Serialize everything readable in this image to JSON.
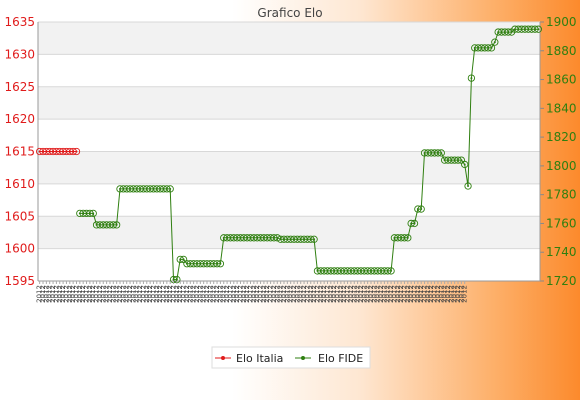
{
  "chart_data": {
    "type": "line",
    "title": "Grafico Elo",
    "left_axis": {
      "ylim": [
        1595,
        1635
      ],
      "ticks": [
        1595,
        1600,
        1605,
        1610,
        1615,
        1620,
        1625,
        1630,
        1635
      ],
      "color": "#e01b1b"
    },
    "right_axis": {
      "ylim": [
        1720,
        1900
      ],
      "ticks": [
        1720,
        1740,
        1760,
        1780,
        1800,
        1820,
        1840,
        1860,
        1880,
        1900
      ],
      "color": "#2f7f10"
    },
    "grid": true,
    "legend_position": "bottom",
    "x_tick_labels": [
      "2012",
      "2012",
      "2012",
      "2012",
      "2012",
      "2012",
      "2012",
      "2012",
      "2012",
      "2012",
      "2012",
      "2012",
      "2012",
      "2012",
      "2012",
      "2012",
      "2012",
      "2012",
      "2012",
      "2012",
      "2012",
      "2012",
      "2012",
      "2012",
      "2012",
      "2012",
      "2012",
      "2012",
      "2012",
      "2012",
      "2012",
      "2012",
      "2012",
      "2012",
      "2012",
      "2012",
      "2012",
      "2012",
      "2012",
      "2012",
      "2012",
      "2012",
      "2012",
      "2012",
      "2012",
      "2012",
      "2012",
      "2012",
      "2012",
      "2012",
      "2012",
      "2012",
      "2012",
      "2012",
      "2012",
      "2012",
      "2012",
      "2012",
      "2012",
      "2012",
      "2012",
      "2012",
      "2012",
      "2012",
      "2012",
      "2012",
      "2012",
      "2012",
      "2012",
      "2012",
      "2012",
      "2012",
      "2012",
      "2012",
      "2012",
      "2012",
      "2012",
      "2012",
      "2012",
      "2012",
      "2012",
      "2012",
      "2012",
      "2012",
      "2012",
      "2012",
      "2012",
      "2012",
      "2012",
      "2012",
      "2012",
      "2012",
      "2012",
      "2012",
      "2012",
      "2012",
      "2012",
      "2012",
      "2012",
      "2012",
      "2012",
      "2012",
      "2012",
      "2012",
      "2012",
      "2012",
      "2012",
      "2012",
      "2012",
      "2012",
      "2012",
      "2012",
      "2012",
      "2012",
      "2012",
      "2012",
      "2012",
      "2012",
      "2012",
      "2012",
      "2012",
      "2012",
      "2012",
      "2012",
      "2012",
      "2012",
      "2012",
      "2012"
    ],
    "series": [
      {
        "name": "Elo Italia",
        "axis": "left",
        "color": "#e01b1b",
        "values": [
          1615,
          1615,
          1615,
          1615,
          1615,
          1615,
          1615,
          1615,
          1615,
          1615,
          1615,
          1615
        ]
      },
      {
        "name": "Elo FIDE",
        "axis": "right",
        "color": "#2f7f10",
        "values": [
          null,
          null,
          null,
          null,
          null,
          null,
          null,
          null,
          null,
          null,
          null,
          null,
          1767,
          1767,
          1767,
          1767,
          1767,
          1759,
          1759,
          1759,
          1759,
          1759,
          1759,
          1759,
          1784,
          1784,
          1784,
          1784,
          1784,
          1784,
          1784,
          1784,
          1784,
          1784,
          1784,
          1784,
          1784,
          1784,
          1784,
          1784,
          1721,
          1721,
          1735,
          1735,
          1732,
          1732,
          1732,
          1732,
          1732,
          1732,
          1732,
          1732,
          1732,
          1732,
          1732,
          1750,
          1750,
          1750,
          1750,
          1750,
          1750,
          1750,
          1750,
          1750,
          1750,
          1750,
          1750,
          1750,
          1750,
          1750,
          1750,
          1750,
          1749,
          1749,
          1749,
          1749,
          1749,
          1749,
          1749,
          1749,
          1749,
          1749,
          1749,
          1727,
          1727,
          1727,
          1727,
          1727,
          1727,
          1727,
          1727,
          1727,
          1727,
          1727,
          1727,
          1727,
          1727,
          1727,
          1727,
          1727,
          1727,
          1727,
          1727,
          1727,
          1727,
          1727,
          1750,
          1750,
          1750,
          1750,
          1750,
          1760,
          1760,
          1770,
          1770,
          1809,
          1809,
          1809,
          1809,
          1809,
          1809,
          1804,
          1804,
          1804,
          1804,
          1804,
          1804,
          1801,
          1786,
          1861,
          1882,
          1882,
          1882,
          1882,
          1882,
          1882,
          1886,
          1893,
          1893,
          1893,
          1893,
          1893,
          1895,
          1895,
          1895,
          1895,
          1895,
          1895,
          1895,
          1895
        ]
      }
    ]
  }
}
